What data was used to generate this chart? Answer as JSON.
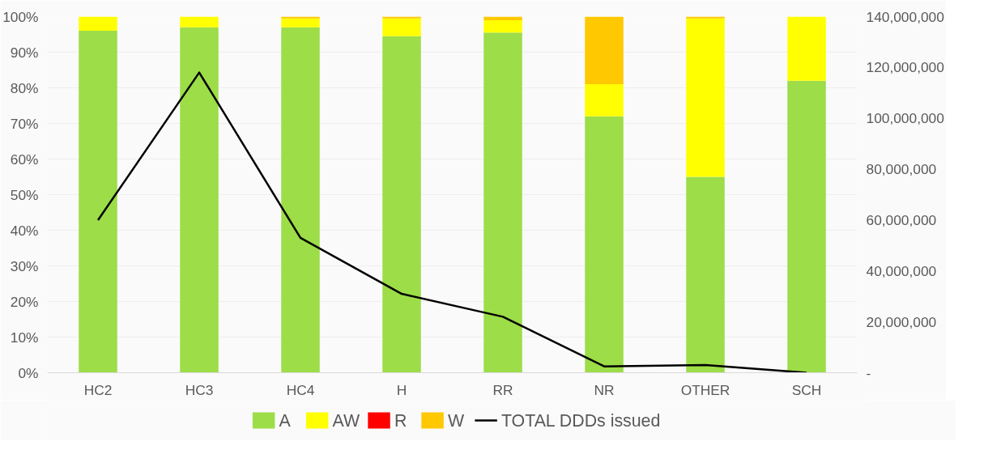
{
  "chart_data": {
    "type": "bar",
    "stacked": true,
    "categories": [
      "HC2",
      "HC3",
      "HC4",
      "H",
      "RR",
      "NR",
      "OTHER",
      "SCH"
    ],
    "series": [
      {
        "name": "A",
        "color": "#9cdd48",
        "values": [
          96,
          97,
          97,
          94.5,
          95.5,
          72,
          55,
          82
        ]
      },
      {
        "name": "AW",
        "color": "#ffff00",
        "values": [
          4,
          3,
          2.5,
          5,
          3.5,
          9,
          44.5,
          18
        ]
      },
      {
        "name": "R",
        "color": "#ff0000",
        "values": [
          0,
          0,
          0,
          0,
          0,
          0,
          0,
          0
        ]
      },
      {
        "name": "W",
        "color": "#ffc800",
        "values": [
          0,
          0,
          0.5,
          0.5,
          1,
          19,
          0.5,
          0
        ]
      },
      {
        "name": "TOTAL DDDs issued",
        "type": "line",
        "axis": "y2",
        "color": "#000000",
        "values": [
          60000000,
          118000000,
          53000000,
          31000000,
          22000000,
          2500000,
          3000000,
          0
        ]
      }
    ],
    "ylim": [
      0,
      100
    ],
    "yticks": [
      {
        "value": 0,
        "label": "0%"
      },
      {
        "value": 10,
        "label": "10%"
      },
      {
        "value": 20,
        "label": "20%"
      },
      {
        "value": 30,
        "label": "30%"
      },
      {
        "value": 40,
        "label": "40%"
      },
      {
        "value": 50,
        "label": "50%"
      },
      {
        "value": 60,
        "label": "60%"
      },
      {
        "value": 70,
        "label": "70%"
      },
      {
        "value": 80,
        "label": "80%"
      },
      {
        "value": 90,
        "label": "90%"
      },
      {
        "value": 100,
        "label": "100%"
      }
    ],
    "y2lim": [
      0,
      140000000
    ],
    "y2ticks": [
      {
        "value": 0,
        "label": "-"
      },
      {
        "value": 20000000,
        "label": "20,000,000"
      },
      {
        "value": 40000000,
        "label": "40,000,000"
      },
      {
        "value": 60000000,
        "label": "60,000,000"
      },
      {
        "value": 80000000,
        "label": "80,000,000"
      },
      {
        "value": 100000000,
        "label": "100,000,000"
      },
      {
        "value": 120000000,
        "label": "120,000,000"
      },
      {
        "value": 140000000,
        "label": "140,000,000"
      }
    ],
    "grid": "y",
    "legend": "bottom"
  }
}
